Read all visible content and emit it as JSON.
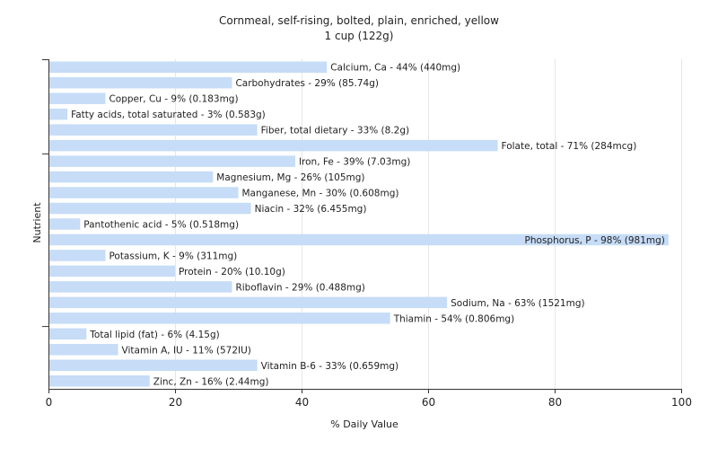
{
  "chart_data": {
    "type": "bar",
    "orientation": "horizontal",
    "title": "Cornmeal, self-rising, bolted, plain, enriched, yellow",
    "subtitle": "1 cup (122g)",
    "xlabel": "% Daily Value",
    "ylabel": "Nutrient",
    "xlim": [
      0,
      100
    ],
    "xticks": [
      0,
      20,
      40,
      60,
      80,
      100
    ],
    "grid": "vertical",
    "bar_color": "#c6dcf7",
    "categories": [
      "Calcium, Ca",
      "Carbohydrates",
      "Copper, Cu",
      "Fatty acids, total saturated",
      "Fiber, total dietary",
      "Folate, total",
      "Iron, Fe",
      "Magnesium, Mg",
      "Manganese, Mn",
      "Niacin",
      "Pantothenic acid",
      "Phosphorus, P",
      "Potassium, K",
      "Protein",
      "Riboflavin",
      "Sodium, Na",
      "Thiamin",
      "Total lipid (fat)",
      "Vitamin A, IU",
      "Vitamin B-6",
      "Zinc, Zn"
    ],
    "values": [
      44,
      29,
      9,
      3,
      33,
      71,
      39,
      26,
      30,
      32,
      5,
      98,
      9,
      20,
      29,
      63,
      54,
      6,
      11,
      33,
      16
    ],
    "labels": [
      "Calcium, Ca - 44% (440mg)",
      "Carbohydrates - 29% (85.74g)",
      "Copper, Cu - 9% (0.183mg)",
      "Fatty acids, total saturated - 3% (0.583g)",
      "Fiber, total dietary - 33% (8.2g)",
      "Folate, total - 71% (284mcg)",
      "Iron, Fe - 39% (7.03mg)",
      "Magnesium, Mg - 26% (105mg)",
      "Manganese, Mn - 30% (0.608mg)",
      "Niacin - 32% (6.455mg)",
      "Pantothenic acid - 5% (0.518mg)",
      "Phosphorus, P - 98% (981mg)",
      "Potassium, K - 9% (311mg)",
      "Protein - 20% (10.10g)",
      "Riboflavin - 29% (0.488mg)",
      "Sodium, Na - 63% (1521mg)",
      "Thiamin - 54% (0.806mg)",
      "Total lipid (fat) - 6% (4.15g)",
      "Vitamin A, IU - 11% (572IU)",
      "Vitamin B-6 - 33% (0.659mg)",
      "Zinc, Zn - 16% (2.44mg)"
    ]
  }
}
